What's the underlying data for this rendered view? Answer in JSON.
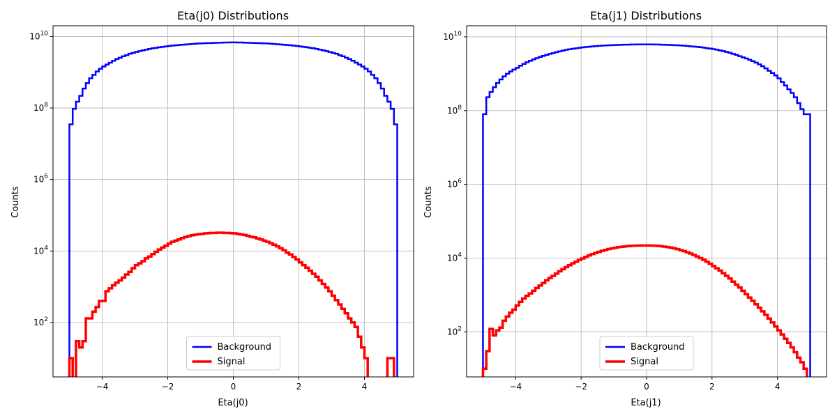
{
  "chart_data": [
    {
      "type": "histogram-step",
      "title": "Eta(j0) Distributions",
      "xlabel": "Eta(j0)",
      "ylabel": "Counts",
      "xlim": [
        -5.5,
        5.5
      ],
      "yscale": "log",
      "ylim": [
        3,
        20000000000
      ],
      "x_ticks": [
        -4,
        -2,
        0,
        2,
        4
      ],
      "y_ticks": [
        100,
        10000,
        1000000,
        100000000,
        10000000000
      ],
      "grid": true,
      "legend": "lower center",
      "bin_range": [
        -5,
        5
      ],
      "bins": 100,
      "series": [
        {
          "name": "Background",
          "color": "#0000ff",
          "counts": [
            35000000,
            95000000,
            150000000,
            220000000,
            350000000,
            500000000,
            680000000,
            850000000,
            1050000000,
            1250000000,
            1450000000,
            1650000000,
            1850000000,
            2100000000,
            2350000000,
            2550000000,
            2800000000,
            3000000000,
            3300000000,
            3500000000,
            3700000000,
            3900000000,
            4100000000,
            4300000000,
            4500000000,
            4700000000,
            4850000000,
            5000000000,
            5150000000,
            5300000000,
            5450000000,
            5550000000,
            5700000000,
            5800000000,
            5900000000,
            6000000000,
            6100000000,
            6200000000,
            6300000000,
            6400000000,
            6450000000,
            6500000000,
            6550000000,
            6600000000,
            6650000000,
            6700000000,
            6750000000,
            6800000000,
            6800000000,
            6850000000,
            6850000000,
            6800000000,
            6800000000,
            6750000000,
            6700000000,
            6650000000,
            6600000000,
            6550000000,
            6500000000,
            6450000000,
            6400000000,
            6300000000,
            6200000000,
            6100000000,
            6000000000,
            5900000000,
            5800000000,
            5700000000,
            5550000000,
            5450000000,
            5300000000,
            5150000000,
            5000000000,
            4850000000,
            4700000000,
            4500000000,
            4300000000,
            4100000000,
            3900000000,
            3700000000,
            3500000000,
            3300000000,
            3000000000,
            2800000000,
            2550000000,
            2350000000,
            2100000000,
            1850000000,
            1650000000,
            1450000000,
            1250000000,
            1050000000,
            850000000,
            680000000,
            500000000,
            350000000,
            220000000,
            150000000,
            95000000,
            35000000
          ]
        },
        {
          "name": "Signal",
          "color": "#ff0000",
          "counts": [
            10,
            0,
            30,
            20,
            30,
            130,
            130,
            200,
            270,
            400,
            400,
            750,
            900,
            1100,
            1300,
            1500,
            1800,
            2200,
            2600,
            3300,
            4000,
            4500,
            5200,
            6200,
            7000,
            8200,
            9500,
            11000,
            12500,
            14000,
            16000,
            18000,
            19500,
            21000,
            23000,
            24500,
            26000,
            27500,
            28500,
            29500,
            30000,
            31000,
            31500,
            32000,
            32000,
            32500,
            32500,
            32000,
            32000,
            31500,
            31000,
            30000,
            29000,
            28000,
            26500,
            25000,
            24000,
            22500,
            21000,
            19500,
            18000,
            16500,
            15000,
            13500,
            12000,
            10500,
            9000,
            8000,
            6800,
            5800,
            4800,
            4000,
            3400,
            2800,
            2300,
            1900,
            1500,
            1200,
            950,
            750,
            560,
            420,
            320,
            240,
            180,
            130,
            100,
            75,
            40,
            20,
            10,
            0,
            0,
            0,
            0,
            0,
            0,
            10,
            10,
            0
          ]
        }
      ]
    },
    {
      "type": "histogram-step",
      "title": "Eta(j1) Distributions",
      "xlabel": "Eta(j1)",
      "ylabel": "Counts",
      "xlim": [
        -5.5,
        5.5
      ],
      "yscale": "log",
      "ylim": [
        6,
        20000000000
      ],
      "x_ticks": [
        -4,
        -2,
        0,
        2,
        4
      ],
      "y_ticks": [
        100,
        10000,
        1000000,
        100000000,
        10000000000
      ],
      "grid": true,
      "legend": "lower center",
      "bin_range": [
        -5,
        5
      ],
      "bins": 100,
      "series": [
        {
          "name": "Background",
          "color": "#0000ff",
          "counts": [
            80000000,
            230000000,
            320000000,
            430000000,
            560000000,
            700000000,
            850000000,
            1000000000,
            1150000000,
            1300000000,
            1450000000,
            1650000000,
            1850000000,
            2050000000,
            2250000000,
            2450000000,
            2650000000,
            2850000000,
            3050000000,
            3250000000,
            3450000000,
            3650000000,
            3850000000,
            4050000000,
            4250000000,
            4450000000,
            4600000000,
            4750000000,
            4900000000,
            5050000000,
            5200000000,
            5300000000,
            5400000000,
            5500000000,
            5600000000,
            5700000000,
            5800000000,
            5850000000,
            5900000000,
            5950000000,
            6000000000,
            6050000000,
            6100000000,
            6150000000,
            6150000000,
            6200000000,
            6200000000,
            6250000000,
            6250000000,
            6250000000,
            6250000000,
            6250000000,
            6200000000,
            6200000000,
            6150000000,
            6100000000,
            6050000000,
            6000000000,
            5950000000,
            5900000000,
            5850000000,
            5750000000,
            5650000000,
            5550000000,
            5450000000,
            5350000000,
            5250000000,
            5100000000,
            4950000000,
            4800000000,
            4650000000,
            4500000000,
            4300000000,
            4100000000,
            3900000000,
            3700000000,
            3450000000,
            3250000000,
            3000000000,
            2800000000,
            2600000000,
            2400000000,
            2200000000,
            2000000000,
            1800000000,
            1600000000,
            1400000000,
            1200000000,
            1050000000,
            900000000,
            750000000,
            600000000,
            480000000,
            380000000,
            300000000,
            230000000,
            160000000,
            110000000,
            80000000,
            80000000
          ]
        },
        {
          "name": "Signal",
          "color": "#ff0000",
          "counts": [
            10,
            30,
            120,
            80,
            110,
            130,
            200,
            260,
            330,
            400,
            520,
            650,
            800,
            950,
            1100,
            1300,
            1550,
            1800,
            2100,
            2500,
            2900,
            3300,
            3800,
            4400,
            5000,
            5700,
            6400,
            7200,
            8000,
            8900,
            9800,
            10800,
            11800,
            12800,
            13800,
            14800,
            15800,
            16700,
            17600,
            18400,
            19100,
            19800,
            20300,
            20800,
            21200,
            21500,
            21700,
            21900,
            22000,
            22000,
            22000,
            21900,
            21700,
            21400,
            21000,
            20500,
            19900,
            19200,
            18400,
            17500,
            16500,
            15500,
            14400,
            13300,
            12200,
            11100,
            10000,
            9000,
            8000,
            7000,
            6100,
            5300,
            4600,
            3900,
            3300,
            2800,
            2300,
            1900,
            1600,
            1300,
            1050,
            850,
            700,
            560,
            450,
            360,
            290,
            230,
            180,
            140,
            110,
            85,
            65,
            50,
            38,
            28,
            20,
            15,
            10,
            5
          ]
        }
      ]
    }
  ]
}
